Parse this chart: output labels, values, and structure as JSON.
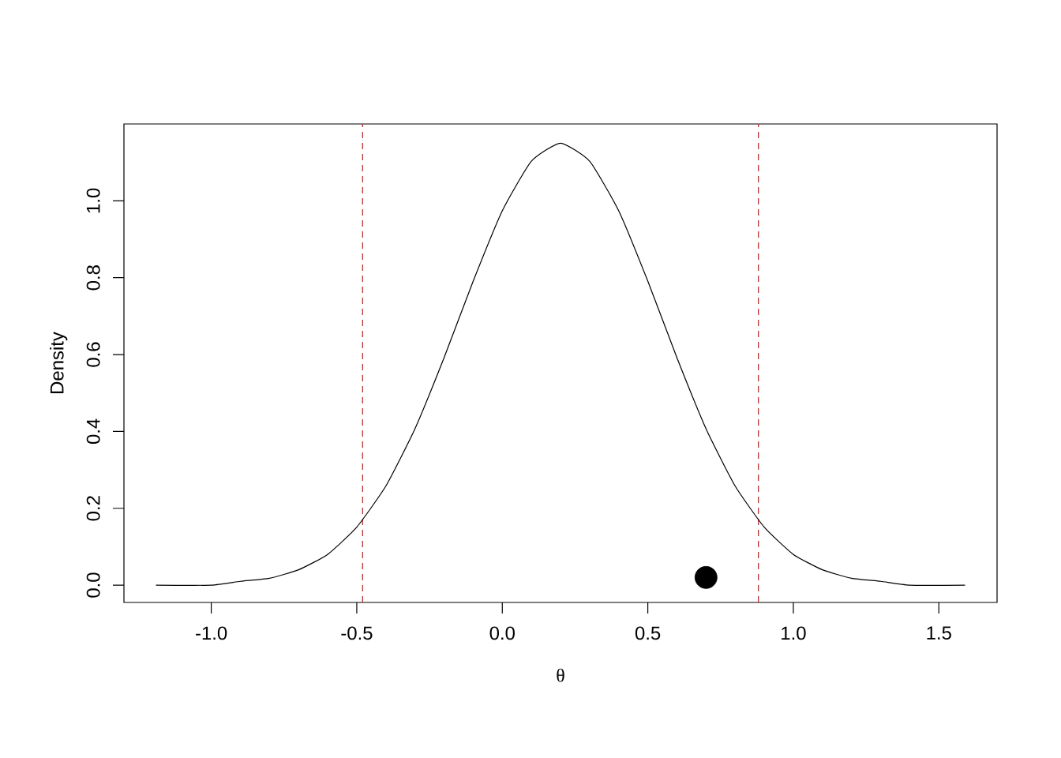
{
  "chart_data": {
    "type": "line",
    "xlabel": "θ",
    "ylabel": "Density",
    "xlim": [
      -1.3,
      1.7
    ],
    "ylim": [
      -0.045,
      1.2
    ],
    "xticks": [
      {
        "value": -1,
        "label": "-1.0"
      },
      {
        "value": -0.5,
        "label": "-0.5"
      },
      {
        "value": 0,
        "label": "0.0"
      },
      {
        "value": 0.5,
        "label": "0.5"
      },
      {
        "value": 1,
        "label": "1.0"
      },
      {
        "value": 1.5,
        "label": "1.5"
      }
    ],
    "yticks": [
      {
        "value": 0,
        "label": "0.0"
      },
      {
        "value": 0.2,
        "label": "0.2"
      },
      {
        "value": 0.4,
        "label": "0.4"
      },
      {
        "value": 0.6,
        "label": "0.6"
      },
      {
        "value": 0.8,
        "label": "0.8"
      },
      {
        "value": 1,
        "label": "1.0"
      }
    ],
    "series": [
      {
        "color": "#000000",
        "marker": "none",
        "x": [
          -1.19,
          -1.0,
          -0.9,
          -0.8,
          -0.7,
          -0.6,
          -0.5,
          -0.4,
          -0.3,
          -0.2,
          -0.1,
          0.0,
          0.1,
          0.2,
          0.3,
          0.4,
          0.5,
          0.6,
          0.7,
          0.8,
          0.9,
          1.0,
          1.1,
          1.2,
          1.3,
          1.4,
          1.59
        ],
        "values": [
          0.0,
          0.0,
          0.01,
          0.018,
          0.04,
          0.08,
          0.151,
          0.258,
          0.407,
          0.592,
          0.791,
          0.974,
          1.103,
          1.15,
          1.103,
          0.974,
          0.791,
          0.592,
          0.407,
          0.258,
          0.151,
          0.08,
          0.04,
          0.018,
          0.01,
          0.0,
          0.0
        ]
      },
      {
        "type": "scatter",
        "color": "#000000",
        "marker": "circle",
        "x": [
          0.7
        ],
        "values": [
          0.02
        ]
      }
    ],
    "ref_lines": [
      {
        "axis": "x",
        "value": -0.48,
        "color": "#b22222",
        "line_style": "dashed"
      },
      {
        "axis": "x",
        "value": 0.88,
        "color": "#b22222",
        "line_style": "dashed"
      }
    ],
    "grid": false
  }
}
